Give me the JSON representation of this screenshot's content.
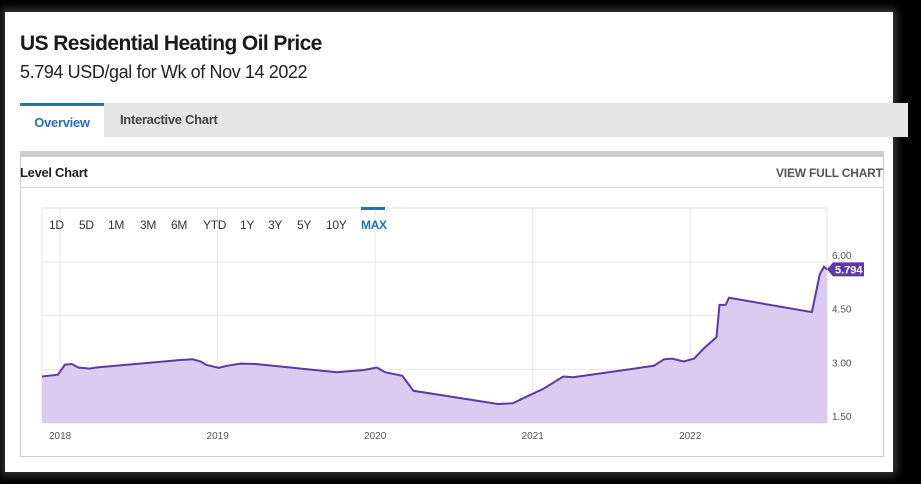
{
  "header": {
    "title": "US Residential Heating Oil Price",
    "subtitle": "5.794 USD/gal for Wk of Nov 14 2022"
  },
  "tabs": [
    {
      "label": "Overview",
      "active": true
    },
    {
      "label": "Interactive Chart",
      "active": false
    }
  ],
  "card": {
    "title": "Level Chart",
    "view_full": "VIEW FULL CHART"
  },
  "ranges": [
    {
      "label": "1D"
    },
    {
      "label": "5D"
    },
    {
      "label": "1M"
    },
    {
      "label": "3M"
    },
    {
      "label": "6M"
    },
    {
      "label": "YTD"
    },
    {
      "label": "1Y"
    },
    {
      "label": "3Y"
    },
    {
      "label": "5Y"
    },
    {
      "label": "10Y"
    },
    {
      "label": "MAX",
      "active": true
    }
  ],
  "colors": {
    "line": "#5b3aa8",
    "fill": "#d9ccf0",
    "accent": "#2a6fb0",
    "badge": "#5b3aa8"
  },
  "chart_data": {
    "type": "area",
    "xlabel": "",
    "ylabel": "",
    "x_ticks": [
      "2018",
      "2019",
      "2020",
      "2021",
      "2022"
    ],
    "y_ticks": [
      "1.50",
      "3.00",
      "4.50",
      "6.00"
    ],
    "ylim": [
      1.5,
      6.0
    ],
    "xlim": [
      "2017-11-20",
      "2022-11-14"
    ],
    "grid": true,
    "last_value_label": "5.794",
    "points": [
      [
        "2017-11-20",
        2.8
      ],
      [
        "2017-12-27",
        2.85
      ],
      [
        "2018-01-12",
        3.13
      ],
      [
        "2018-01-28",
        3.15
      ],
      [
        "2018-02-12",
        3.05
      ],
      [
        "2018-03-10",
        3.02
      ],
      [
        "2018-03-26",
        3.05
      ],
      [
        "2018-10-07",
        3.26
      ],
      [
        "2018-11-04",
        3.28
      ],
      [
        "2018-11-23",
        3.22
      ],
      [
        "2018-12-06",
        3.12
      ],
      [
        "2019-01-04",
        3.04
      ],
      [
        "2019-01-22",
        3.1
      ],
      [
        "2019-02-24",
        3.16
      ],
      [
        "2019-03-30",
        3.15
      ],
      [
        "2019-10-04",
        2.92
      ],
      [
        "2019-12-06",
        2.98
      ],
      [
        "2020-01-05",
        3.05
      ],
      [
        "2020-01-24",
        2.92
      ],
      [
        "2020-03-04",
        2.82
      ],
      [
        "2020-03-30",
        2.4
      ],
      [
        "2020-10-12",
        2.03
      ],
      [
        "2020-11-16",
        2.05
      ],
      [
        "2020-12-20",
        2.25
      ],
      [
        "2021-01-25",
        2.45
      ],
      [
        "2021-03-13",
        2.8
      ],
      [
        "2021-04-05",
        2.78
      ],
      [
        "2021-10-09",
        3.1
      ],
      [
        "2021-11-01",
        3.28
      ],
      [
        "2021-11-20",
        3.3
      ],
      [
        "2021-12-17",
        3.22
      ],
      [
        "2022-01-10",
        3.3
      ],
      [
        "2022-02-03",
        3.6
      ],
      [
        "2022-03-03",
        3.9
      ],
      [
        "2022-03-10",
        4.8
      ],
      [
        "2022-03-24",
        4.8
      ],
      [
        "2022-04-01",
        5.0
      ],
      [
        "2022-10-10",
        4.6
      ],
      [
        "2022-10-28",
        5.65
      ],
      [
        "2022-11-07",
        5.87
      ],
      [
        "2022-11-14",
        5.794
      ]
    ]
  }
}
